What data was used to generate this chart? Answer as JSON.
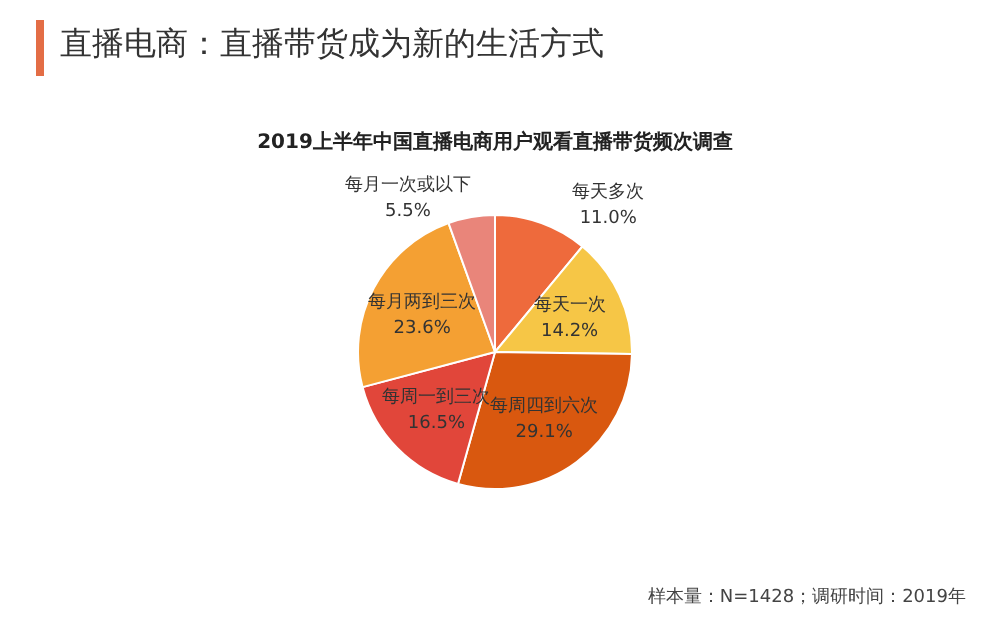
{
  "chart_data": {
    "type": "pie",
    "title": "2019上半年中国直播电商用户观看直播带货频次调查",
    "subtitle": "直播电商：直播带货成为新的生活方式",
    "categories": [
      "每天多次",
      "每天一次",
      "每周四到六次",
      "每周一到三次",
      "每月两到三次",
      "每月一次或以下"
    ],
    "values": [
      11.0,
      14.2,
      29.1,
      16.5,
      23.6,
      5.5
    ],
    "value_labels": [
      "11.0%",
      "14.2%",
      "29.1%",
      "16.5%",
      "23.6%",
      "5.5%"
    ],
    "colors": [
      "#ee6a3c",
      "#f6c646",
      "#d9580f",
      "#e1463a",
      "#f4a033",
      "#e9857a"
    ],
    "legend": false,
    "annotations": [
      "样本量：N=1428；调研时间：2019年"
    ]
  }
}
